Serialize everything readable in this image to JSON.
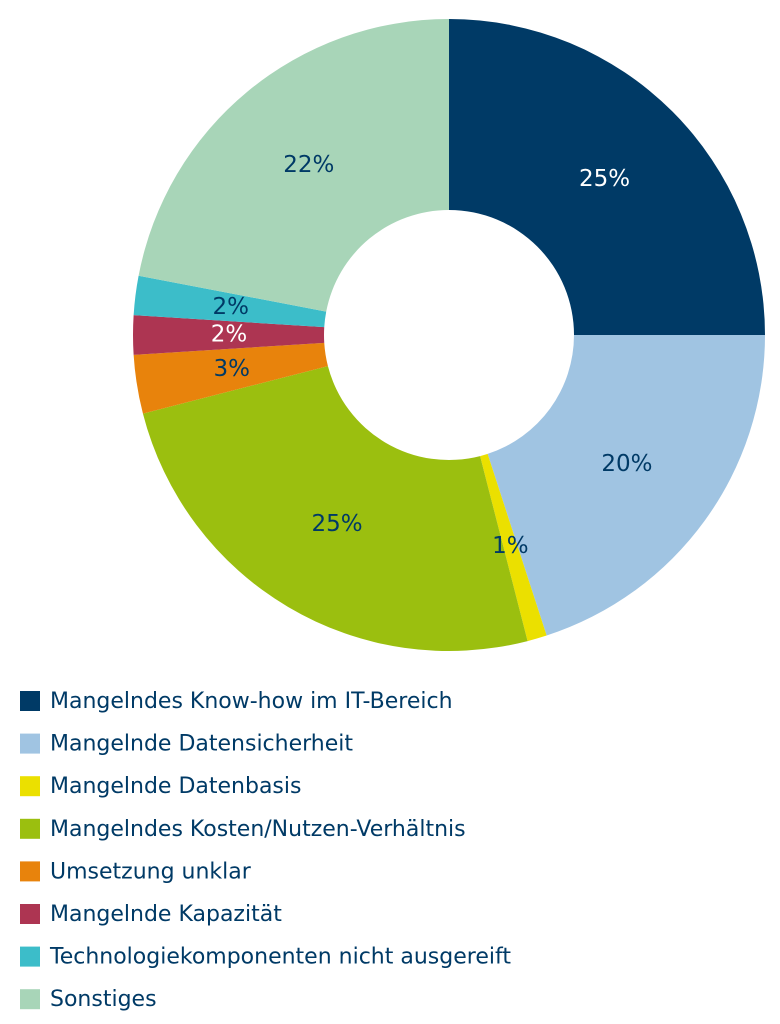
{
  "chart_data": {
    "type": "donut",
    "categories": [
      "Mangelndes Know-how im IT-Bereich",
      "Mangelnde Datensicherheit",
      "Mangelnde Datenbasis",
      "Mangelndes Kosten/Nutzen-Verhältnis",
      "Umsetzung unklar",
      "Mangelnde Kapazität",
      "Technologiekomponenten nicht ausgereift",
      "Sonstiges"
    ],
    "values": [
      25,
      20,
      1,
      25,
      3,
      2,
      2,
      22
    ],
    "value_labels": [
      "25%",
      "20%",
      "1%",
      "25%",
      "3%",
      "2%",
      "2%",
      "22%"
    ],
    "colors": [
      "#003a66",
      "#a0c4e2",
      "#ebe000",
      "#9bbf0f",
      "#e8830c",
      "#ad3552",
      "#3cbdc9",
      "#a8d5b8"
    ]
  }
}
